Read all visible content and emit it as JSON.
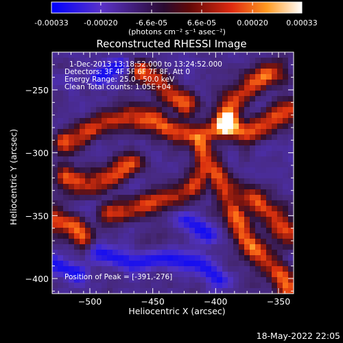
{
  "colorbar": {
    "tick_labels": [
      "-0.00033",
      "-0.00020",
      "-6.6e-05",
      "6.6e-05",
      "0.00020",
      "0.00033"
    ],
    "tick_values": [
      -0.00033,
      -0.0002,
      -6.6e-05,
      6.6e-05,
      0.0002,
      0.00033
    ],
    "range": [
      -0.00033,
      0.00033
    ],
    "units_label": "(photons cm⁻² s⁻¹ asec⁻²)"
  },
  "chart_data": {
    "type": "heatmap",
    "title": "Reconstructed RHESSI Image",
    "xlabel": "Heliocentric X (arcsec)",
    "ylabel": "Heliocentric Y (arcsec)",
    "xlim": [
      -530,
      -338
    ],
    "ylim": [
      -412,
      -220
    ],
    "xticks": [
      -500,
      -450,
      -400,
      -350
    ],
    "xtick_labels": [
      "−500",
      "−450",
      "−400",
      "−350"
    ],
    "yticks": [
      -250,
      -300,
      -350,
      -400
    ],
    "ytick_labels": [
      "−250",
      "−300",
      "−350",
      "−400"
    ],
    "colormap": [
      "#0000ff",
      "#5a32c8",
      "#3a1a48",
      "#9a1a10",
      "#ff6a10",
      "#ffc040",
      "#ffffff"
    ],
    "peak": {
      "x": -391,
      "y": -276
    },
    "annotations": [
      "1-Dec-2013 13:18:52.000 to 13:24:52.000",
      "Detectors: 3F 4F 5F 6F 7F 8F, Att 0",
      "Energy Range: 25.0 - 50.0 keV",
      "Clean     Total counts: 1.05E+04"
    ],
    "peak_label": "Position of Peak = [-391,-276]"
  },
  "footer": {
    "timestamp": "18-May-2022 22:05"
  }
}
